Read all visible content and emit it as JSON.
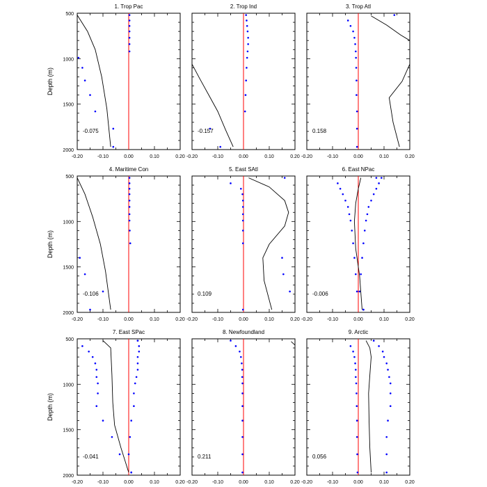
{
  "colors": {
    "zero_line": "#ff0000",
    "points": "#0000ff",
    "curve": "#000000",
    "frame": "#000000"
  },
  "chart_data": {
    "type": "line",
    "ylabel": "Depth (m)",
    "xlim": [
      -0.2,
      0.2
    ],
    "ylim": [
      500,
      2000
    ],
    "x_ticks": [
      "-0.20",
      "-0.10",
      "0.00",
      "0.10",
      "0.20"
    ],
    "y_ticks": [
      "500",
      "1000",
      "1500",
      "2000"
    ],
    "depths": [
      520,
      580,
      640,
      700,
      770,
      840,
      920,
      990,
      1100,
      1240,
      1400,
      1580,
      1770,
      1970
    ],
    "panels": [
      {
        "title": "1. Trop Pac",
        "value": "-0.075",
        "points": [
          0.003,
          0.003,
          0.003,
          0.003,
          0.003,
          0.003,
          0.003,
          -0.195,
          -0.18,
          -0.17,
          -0.15,
          -0.13,
          -0.06,
          -0.06
        ],
        "curve": [
          [
            -0.2,
            520
          ],
          [
            -0.16,
            700
          ],
          [
            -0.13,
            900
          ],
          [
            -0.105,
            1200
          ],
          [
            -0.085,
            1550
          ],
          [
            -0.07,
            1970
          ]
        ]
      },
      {
        "title": "2. Trop Ind",
        "value": "-0.157",
        "points": [
          0.01,
          0.012,
          0.014,
          0.016,
          0.018,
          0.018,
          0.016,
          0.014,
          0.012,
          0.01,
          0.008,
          0.006,
          -0.13,
          -0.09
        ],
        "curve": [
          [
            -0.2,
            1060
          ],
          [
            -0.17,
            1220
          ],
          [
            -0.135,
            1400
          ],
          [
            -0.1,
            1580
          ],
          [
            -0.07,
            1780
          ],
          [
            -0.04,
            1970
          ]
        ]
      },
      {
        "title": "3. Trop Atl",
        "value": "0.158",
        "points": [
          0.14,
          -0.04,
          -0.03,
          -0.02,
          -0.015,
          -0.012,
          -0.01,
          -0.009,
          -0.008,
          -0.007,
          -0.007,
          -0.005,
          -0.005,
          -0.005
        ],
        "curve": [
          [
            0.05,
            530
          ],
          [
            0.11,
            630
          ],
          [
            0.165,
            740
          ],
          [
            0.2,
            800
          ],
          [
            0.2,
            1060
          ],
          [
            0.17,
            1250
          ],
          [
            0.12,
            1430
          ],
          [
            0.135,
            1700
          ],
          [
            0.16,
            1970
          ]
        ]
      },
      {
        "title": "4. Maritime Con",
        "value": "-0.106",
        "points": [
          0.003,
          0.003,
          0.003,
          0.003,
          0.003,
          0.003,
          0.003,
          0.003,
          0.004,
          0.006,
          -0.19,
          -0.17,
          -0.1,
          -0.15
        ],
        "curve": [
          [
            -0.2,
            520
          ],
          [
            -0.17,
            700
          ],
          [
            -0.14,
            950
          ],
          [
            -0.11,
            1250
          ],
          [
            -0.09,
            1550
          ],
          [
            -0.07,
            1970
          ]
        ]
      },
      {
        "title": "5. East SAtl",
        "value": "0.109",
        "points": [
          0.16,
          -0.05,
          -0.01,
          -0.004,
          -0.002,
          -0.002,
          -0.002,
          -0.002,
          -0.002,
          -0.002,
          0.15,
          0.155,
          0.18,
          -0.002
        ],
        "curve": [
          [
            0.02,
            520
          ],
          [
            0.1,
            620
          ],
          [
            0.16,
            770
          ],
          [
            0.175,
            900
          ],
          [
            0.16,
            1050
          ],
          [
            0.1,
            1250
          ],
          [
            0.075,
            1400
          ],
          [
            0.08,
            1650
          ],
          [
            0.11,
            1970
          ]
        ]
      },
      {
        "title": "6. East NPac",
        "value": "-0.006",
        "points": [
          0.07,
          -0.08,
          -0.07,
          -0.06,
          -0.05,
          -0.04,
          -0.035,
          -0.03,
          -0.025,
          -0.02,
          -0.015,
          -0.01,
          -0.005,
          0.02
        ],
        "curve": [
          [
            0.01,
            520
          ],
          [
            0.0,
            640
          ],
          [
            -0.01,
            800
          ],
          [
            -0.015,
            1000
          ],
          [
            -0.01,
            1300
          ],
          [
            0.005,
            1600
          ],
          [
            0.015,
            1970
          ]
        ]
      },
      {
        "title": "7. East SPac",
        "value": "-0.041",
        "points": [
          0.035,
          -0.18,
          -0.155,
          -0.14,
          -0.13,
          -0.125,
          -0.125,
          -0.12,
          -0.12,
          -0.125,
          -0.1,
          -0.065,
          -0.035,
          0.01
        ],
        "curve": [
          [
            -0.1,
            520
          ],
          [
            -0.07,
            600
          ],
          [
            -0.065,
            900
          ],
          [
            -0.062,
            1200
          ],
          [
            -0.055,
            1450
          ],
          [
            -0.03,
            1700
          ],
          [
            0.0,
            1970
          ]
        ]
      },
      {
        "title": "8. Newfoundland",
        "value": "0.211",
        "points": [
          -0.05,
          -0.03,
          -0.015,
          -0.01,
          -0.007,
          -0.005,
          -0.005,
          -0.004,
          -0.004,
          -0.004,
          -0.004,
          -0.004,
          -0.004,
          -0.004
        ],
        "curve": [
          [
            0.185,
            530
          ],
          [
            0.2,
            570
          ]
        ]
      },
      {
        "title": "9. Arctic",
        "value": "0.056",
        "points": [
          0.06,
          -0.03,
          -0.02,
          -0.015,
          -0.012,
          -0.01,
          -0.01,
          -0.008,
          -0.007,
          -0.006,
          -0.005,
          -0.005,
          -0.004,
          -0.003
        ],
        "curve": [
          [
            0.03,
            520
          ],
          [
            0.045,
            600
          ],
          [
            0.05,
            700
          ],
          [
            0.045,
            900
          ],
          [
            0.04,
            1100
          ],
          [
            0.042,
            1400
          ],
          [
            0.045,
            1700
          ],
          [
            0.05,
            1970
          ]
        ]
      }
    ],
    "points_right": [
      null,
      null,
      null,
      null,
      null,
      [
        0.09,
        0.08,
        0.07,
        0.06,
        0.05,
        0.04,
        0.035,
        0.03,
        0.025,
        0.02,
        0.015,
        0.01,
        0.005,
        0.02
      ],
      [
        0.035,
        0.04,
        0.04,
        0.035,
        0.035,
        0.035,
        0.03,
        0.025,
        0.02,
        0.02,
        0.01,
        0.005,
        0.0,
        0.01
      ],
      null,
      [
        0.06,
        0.08,
        0.095,
        0.1,
        0.11,
        0.115,
        0.12,
        0.125,
        0.125,
        0.125,
        0.115,
        0.11,
        0.11,
        0.11
      ]
    ]
  }
}
